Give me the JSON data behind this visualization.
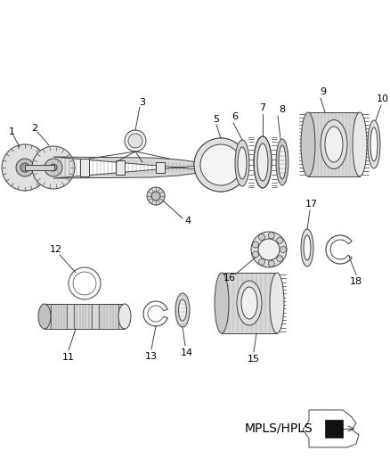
{
  "background_color": "#ffffff",
  "line_color": "#404040",
  "label_color": "#000000",
  "label_fontsize": 8,
  "mpls_text": "MPLS/HPLS",
  "mpls_fontsize": 10,
  "fig_width": 4.38,
  "fig_height": 5.33,
  "dpi": 100
}
